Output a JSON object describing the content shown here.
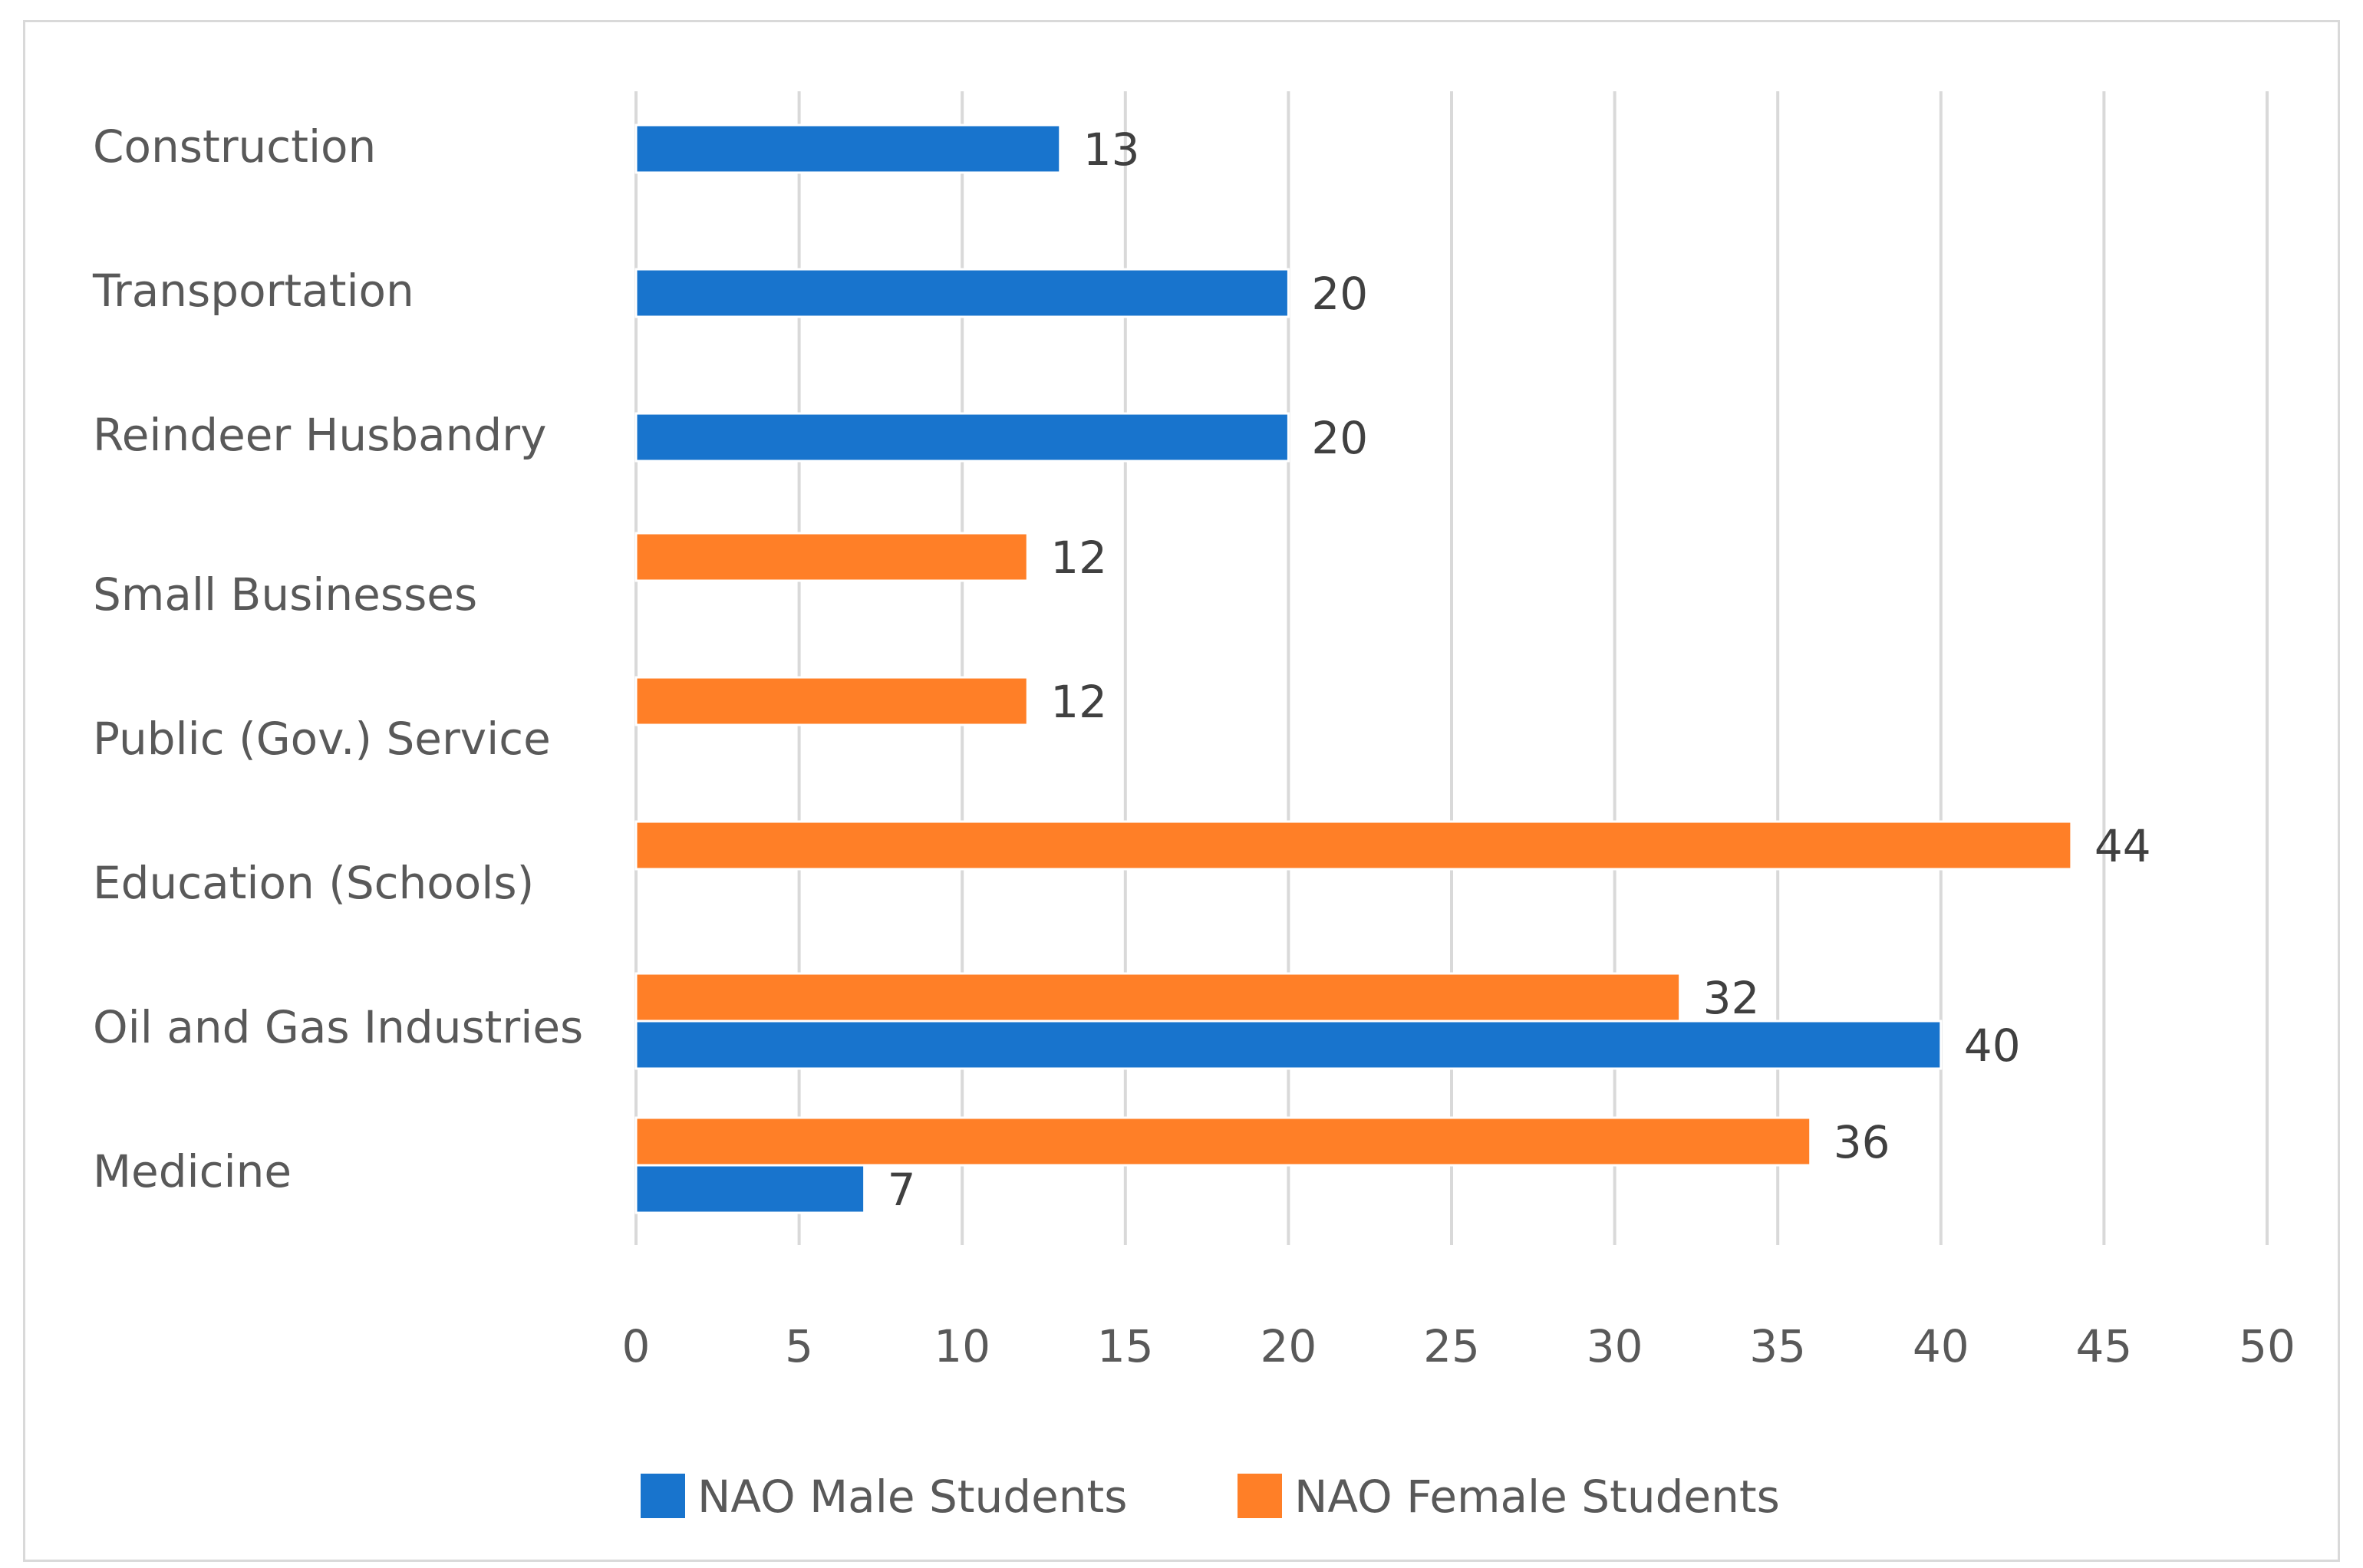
{
  "chart_data": {
    "type": "bar",
    "orientation": "horizontal",
    "title": "",
    "xlabel": "",
    "ylabel": "",
    "categories": [
      "Construction",
      "Transportation",
      "Reindeer Husbandry",
      "Small Businesses",
      "Public (Gov.) Service",
      "Education (Schools)",
      "Oil and Gas Industries",
      "Medicine"
    ],
    "series": [
      {
        "name": "NAO Male Students",
        "color": "#1874CD",
        "values": [
          13,
          20,
          20,
          null,
          null,
          null,
          40,
          7
        ]
      },
      {
        "name": "NAO Female Students",
        "color": "#FF7F27",
        "values": [
          null,
          null,
          null,
          12,
          12,
          44,
          32,
          36
        ]
      }
    ],
    "xlim": [
      0,
      50
    ],
    "xticks": [
      0,
      5,
      10,
      15,
      20,
      25,
      30,
      35,
      40,
      45,
      50
    ],
    "grid": true,
    "legend_position": "bottom"
  }
}
